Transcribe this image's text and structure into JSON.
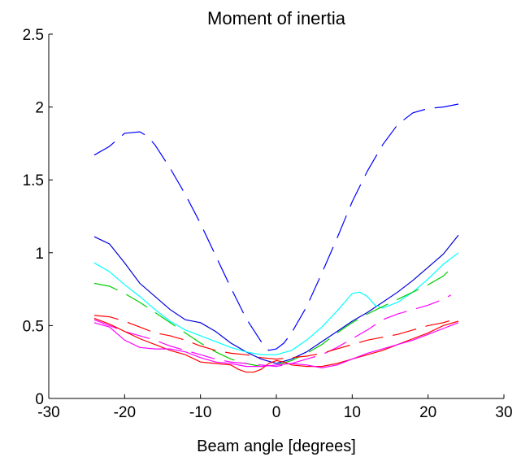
{
  "chart_data": {
    "type": "line",
    "title": "Moment of inertia",
    "xlabel": "Beam angle [degrees]",
    "ylabel": "",
    "xlim": [
      -30,
      30
    ],
    "ylim": [
      0,
      2.5
    ],
    "xticks": [
      -30,
      -20,
      -10,
      0,
      10,
      20,
      30
    ],
    "xtick_labels": [
      "-30",
      "-20",
      "-10",
      "0",
      "10",
      "20",
      "30"
    ],
    "yticks": [
      0,
      0.5,
      1,
      1.5,
      2,
      2.5
    ],
    "ytick_labels": [
      "0",
      "0.5",
      "1",
      "1.5",
      "2",
      "2.5"
    ],
    "grid": false,
    "legend": "none",
    "series": [
      {
        "color": "#0000ff",
        "dash": "long",
        "x": [
          -24,
          -22,
          -20,
          -18,
          -17,
          -16,
          -14,
          -12,
          -10,
          -8,
          -6,
          -4,
          -2,
          -1,
          0,
          1,
          2,
          4,
          6,
          8,
          10,
          12,
          14,
          16,
          18,
          20,
          22,
          24
        ],
        "y": [
          1.67,
          1.73,
          1.82,
          1.83,
          1.8,
          1.74,
          1.58,
          1.4,
          1.2,
          0.98,
          0.76,
          0.55,
          0.39,
          0.33,
          0.34,
          0.38,
          0.45,
          0.63,
          0.86,
          1.1,
          1.35,
          1.56,
          1.74,
          1.88,
          1.96,
          1.99,
          2.0,
          2.02
        ]
      },
      {
        "color": "#0000dd",
        "dash": "solid",
        "x": [
          -24,
          -22,
          -20,
          -18,
          -16,
          -14,
          -12,
          -10,
          -8,
          -6,
          -4,
          -2,
          0,
          2,
          4,
          6,
          8,
          10,
          12,
          14,
          16,
          18,
          20,
          22,
          24
        ],
        "y": [
          1.11,
          1.06,
          0.93,
          0.79,
          0.7,
          0.61,
          0.54,
          0.52,
          0.46,
          0.38,
          0.32,
          0.27,
          0.24,
          0.27,
          0.32,
          0.39,
          0.46,
          0.53,
          0.59,
          0.66,
          0.73,
          0.81,
          0.9,
          0.99,
          1.12
        ]
      },
      {
        "color": "#00ffff",
        "dash": "solid",
        "x": [
          -24,
          -22,
          -20,
          -18,
          -16,
          -14,
          -12,
          -10,
          -8,
          -6,
          -4,
          -2,
          0,
          2,
          4,
          6,
          8,
          10,
          11,
          12,
          13,
          14,
          16,
          18,
          20,
          22,
          24
        ],
        "y": [
          0.93,
          0.87,
          0.78,
          0.7,
          0.61,
          0.53,
          0.47,
          0.43,
          0.39,
          0.35,
          0.32,
          0.3,
          0.3,
          0.33,
          0.4,
          0.49,
          0.6,
          0.72,
          0.73,
          0.7,
          0.64,
          0.62,
          0.66,
          0.73,
          0.82,
          0.92,
          1.0
        ]
      },
      {
        "color": "#00cc00",
        "dash": "long",
        "x": [
          -24,
          -22,
          -20,
          -18,
          -16,
          -14,
          -12,
          -10,
          -8,
          -6,
          -4,
          -2,
          0,
          2,
          4,
          6,
          8,
          10,
          12,
          14,
          16,
          18,
          20,
          22,
          23
        ],
        "y": [
          0.79,
          0.77,
          0.72,
          0.66,
          0.59,
          0.52,
          0.45,
          0.38,
          0.32,
          0.27,
          0.24,
          0.22,
          0.23,
          0.26,
          0.31,
          0.37,
          0.45,
          0.52,
          0.58,
          0.63,
          0.68,
          0.73,
          0.78,
          0.84,
          0.89
        ]
      },
      {
        "color": "#ff00ff",
        "dash": "long",
        "x": [
          -24,
          -22,
          -20,
          -18,
          -16,
          -14,
          -12,
          -10,
          -8,
          -6,
          -4,
          -2,
          0,
          2,
          4,
          6,
          8,
          10,
          12,
          14,
          16,
          18,
          20,
          22,
          23
        ],
        "y": [
          0.54,
          0.5,
          0.46,
          0.43,
          0.4,
          0.36,
          0.33,
          0.3,
          0.27,
          0.25,
          0.24,
          0.23,
          0.22,
          0.24,
          0.27,
          0.3,
          0.35,
          0.41,
          0.47,
          0.54,
          0.58,
          0.61,
          0.64,
          0.68,
          0.71
        ]
      },
      {
        "color": "#ff0000",
        "dash": "long",
        "x": [
          -24,
          -22,
          -20,
          -18,
          -16,
          -14,
          -12,
          -10,
          -8,
          -6,
          -4,
          -2,
          0,
          2,
          4,
          6,
          8,
          10,
          12,
          14,
          16,
          18,
          20,
          22,
          24
        ],
        "y": [
          0.57,
          0.56,
          0.53,
          0.49,
          0.45,
          0.43,
          0.4,
          0.36,
          0.33,
          0.31,
          0.3,
          0.28,
          0.27,
          0.28,
          0.29,
          0.31,
          0.34,
          0.37,
          0.4,
          0.42,
          0.44,
          0.47,
          0.5,
          0.52,
          0.55
        ]
      },
      {
        "color": "#ff0000",
        "dash": "solid",
        "x": [
          -24,
          -22,
          -20,
          -18,
          -16,
          -14,
          -12,
          -10,
          -8,
          -6,
          -5,
          -4,
          -3,
          -2,
          -1,
          0,
          1,
          2,
          4,
          6,
          8,
          10,
          12,
          14,
          16,
          18,
          20,
          22,
          24
        ],
        "y": [
          0.55,
          0.51,
          0.46,
          0.41,
          0.37,
          0.33,
          0.3,
          0.25,
          0.24,
          0.23,
          0.2,
          0.18,
          0.18,
          0.2,
          0.24,
          0.26,
          0.25,
          0.23,
          0.22,
          0.22,
          0.24,
          0.27,
          0.3,
          0.33,
          0.37,
          0.41,
          0.45,
          0.5,
          0.53
        ]
      },
      {
        "color": "#ff00ff",
        "dash": "solid",
        "x": [
          -24,
          -22,
          -20,
          -18,
          -16,
          -14,
          -12,
          -10,
          -8,
          -6,
          -4,
          -2,
          0,
          2,
          4,
          6,
          8,
          10,
          12,
          14,
          16,
          18,
          20,
          22,
          24
        ],
        "y": [
          0.52,
          0.49,
          0.4,
          0.35,
          0.34,
          0.34,
          0.32,
          0.28,
          0.25,
          0.24,
          0.22,
          0.22,
          0.23,
          0.24,
          0.23,
          0.21,
          0.23,
          0.27,
          0.31,
          0.34,
          0.37,
          0.4,
          0.44,
          0.48,
          0.52
        ]
      }
    ]
  }
}
